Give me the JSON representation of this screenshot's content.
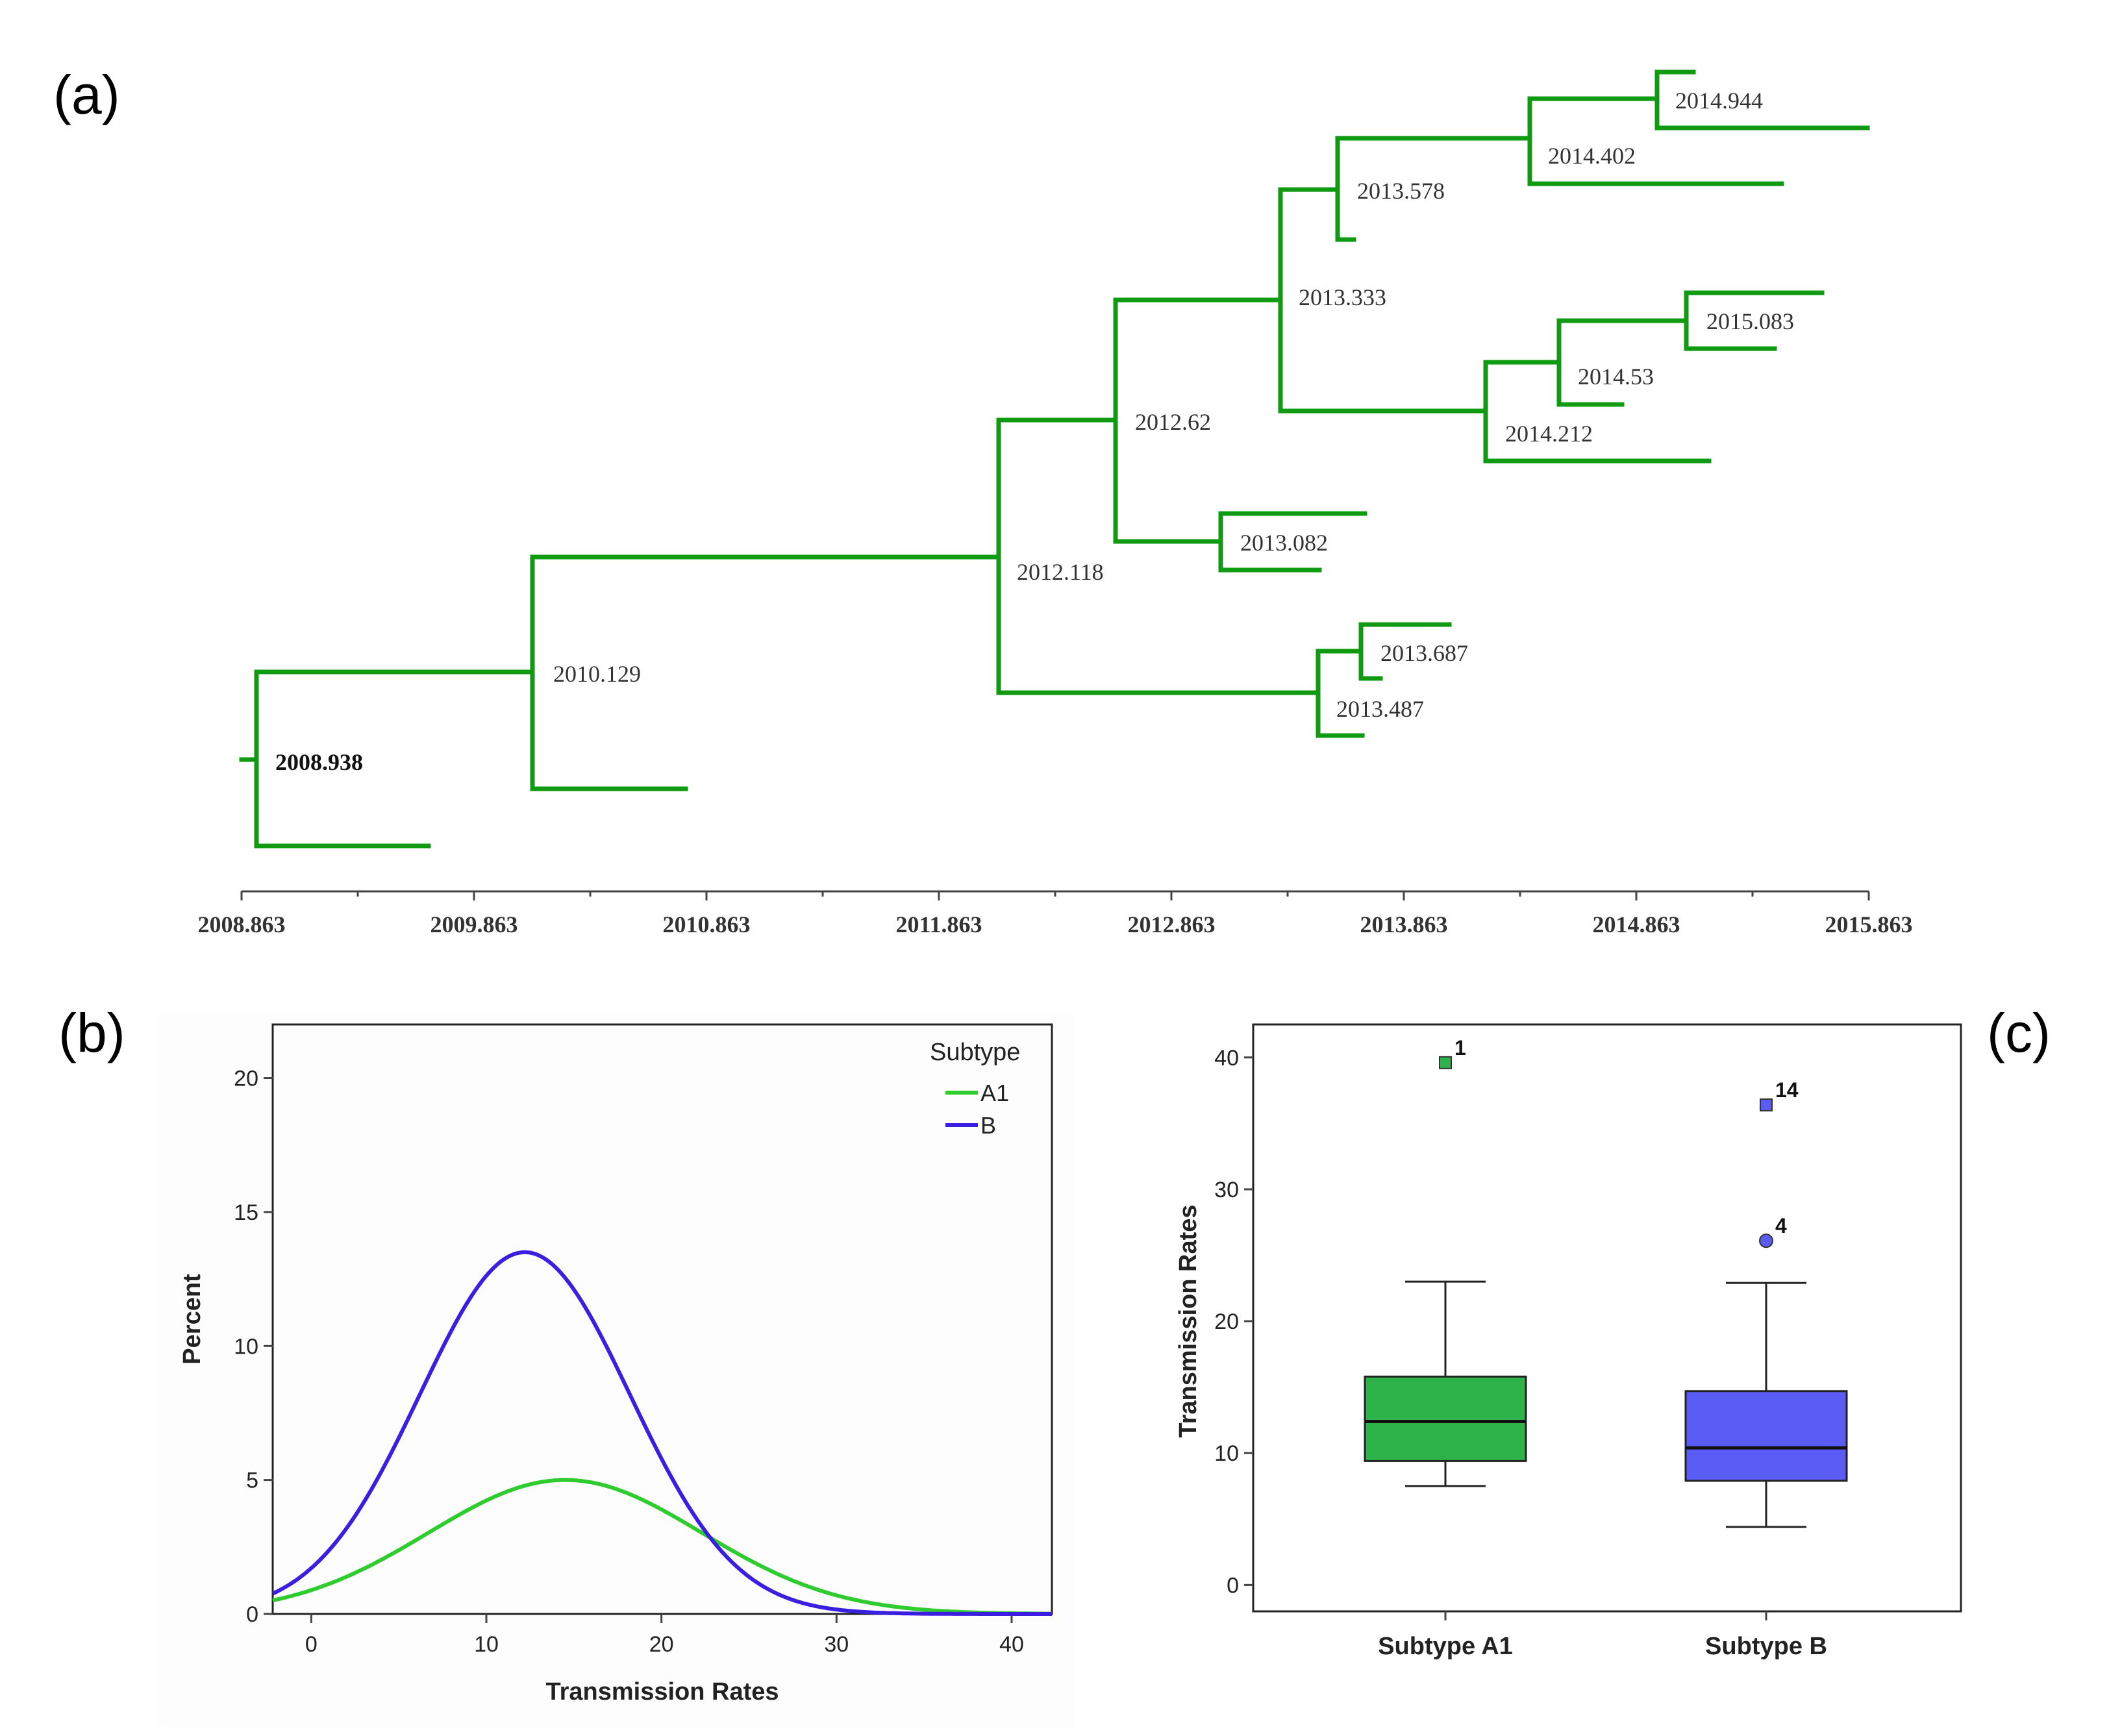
{
  "panels": {
    "a": "(a)",
    "b": "(b)",
    "c": "(c)"
  },
  "colors": {
    "tree": "#0f9a12",
    "a1_line": "#2ecc2e",
    "b_line": "#3a1fe0",
    "a1_box": "#2db34a",
    "b_box": "#5b5cf6"
  },
  "chart_data": [
    {
      "type": "tree",
      "panel": "a",
      "x_axis": {
        "min": 2008.863,
        "max": 2015.863,
        "tick_labels": [
          "2008.863",
          "2009.863",
          "2010.863",
          "2011.863",
          "2012.863",
          "2013.863",
          "2014.863",
          "2015.863"
        ]
      },
      "node_labels": [
        "2008.938",
        "2010.129",
        "2012.118",
        "2012.62",
        "2013.333",
        "2013.578",
        "2014.402",
        "2014.944",
        "2014.212",
        "2014.53",
        "2015.083",
        "2013.082",
        "2013.487",
        "2013.687"
      ]
    },
    {
      "type": "line",
      "panel": "b",
      "xlabel": "Transmission Rates",
      "ylabel": "Percent",
      "xlim": [
        -2.2,
        42.3
      ],
      "ylim": [
        0,
        22
      ],
      "x_ticks": [
        "0",
        "10",
        "20",
        "30",
        "40"
      ],
      "y_ticks": [
        "0",
        "5",
        "10",
        "15",
        "20"
      ],
      "legend": {
        "title": "Subtype",
        "position": "top-right"
      },
      "series": [
        {
          "name": "A1",
          "curve": "normal",
          "mean": 14.5,
          "sd": 7.8,
          "peak": 5.0
        },
        {
          "name": "B",
          "curve": "normal",
          "mean": 12.2,
          "sd": 6.0,
          "peak": 13.5
        }
      ]
    },
    {
      "type": "box",
      "panel": "c",
      "ylabel": "Transmission Rates",
      "ylim": [
        -2,
        42.5
      ],
      "y_ticks": [
        "0",
        "10",
        "20",
        "30",
        "40"
      ],
      "categories": [
        "Subtype A1",
        "Subtype B"
      ],
      "boxes": [
        {
          "min": 7.5,
          "q1": 9.4,
          "median": 12.4,
          "q3": 15.8,
          "max": 23.0,
          "outliers": [
            {
              "value": 39.6,
              "label": "1",
              "shape": "square"
            }
          ]
        },
        {
          "min": 4.4,
          "q1": 7.9,
          "median": 10.4,
          "q3": 14.7,
          "max": 22.9,
          "outliers": [
            {
              "value": 36.4,
              "label": "14",
              "shape": "square"
            },
            {
              "value": 26.1,
              "label": "4",
              "shape": "circle"
            }
          ]
        }
      ]
    }
  ]
}
